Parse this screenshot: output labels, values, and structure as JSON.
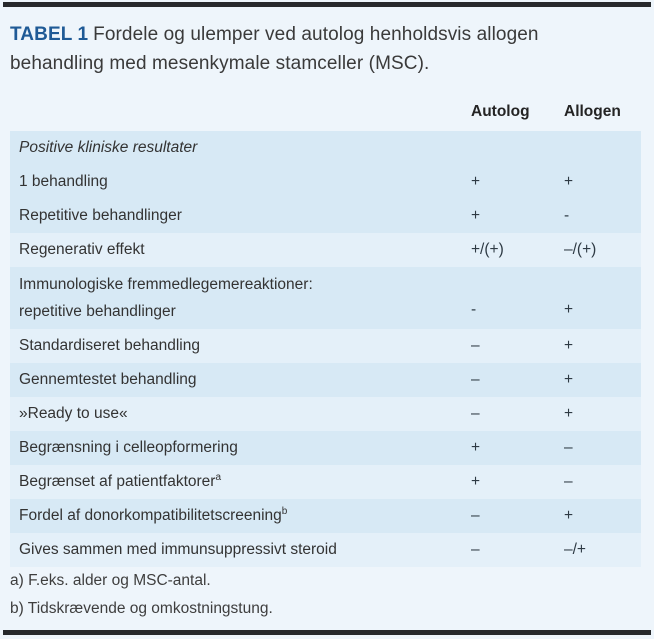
{
  "page": {
    "title_label": "TABEL 1",
    "title_rest_line1": "Fordele og ulemper ved autolog henholdsvis allogen",
    "title_rest_line2": "behandling med mesenkymale stamceller (MSC)."
  },
  "table": {
    "columns": [
      "Autolog",
      "Allogen"
    ],
    "rows": [
      {
        "label": "Positive kliniske resultater",
        "autolog": "",
        "allogen": "",
        "italic": true,
        "shade": "dark"
      },
      {
        "label": "1 behandling",
        "autolog": "+",
        "allogen": "+",
        "shade": "dark"
      },
      {
        "label": "Repetitive behandlinger",
        "autolog": "+",
        "allogen": "-",
        "shade": "dark"
      },
      {
        "label": "Regenerativ effekt",
        "autolog": "+/(+)",
        "allogen": "–/(+)",
        "shade": "light"
      },
      {
        "label": "Immunologiske fremmedlegemereaktioner:",
        "label2": "repetitive behandlinger",
        "autolog": "-",
        "allogen": "+",
        "shade": "dark"
      },
      {
        "label": "Standardiseret behandling",
        "autolog": "–",
        "allogen": "+",
        "shade": "light"
      },
      {
        "label": "Gennemtestet behandling",
        "autolog": "–",
        "allogen": "+",
        "shade": "dark"
      },
      {
        "label": "»Ready to use«",
        "autolog": "–",
        "allogen": "+",
        "shade": "light"
      },
      {
        "label": "Begrænsning i celleopformering",
        "autolog": "+",
        "allogen": "–",
        "shade": "dark"
      },
      {
        "label": "Begrænset af patientfaktorer",
        "sup": "a",
        "autolog": "+",
        "allogen": "–",
        "shade": "light"
      },
      {
        "label": "Fordel af donorkompatibilitetscreening",
        "sup": "b",
        "autolog": "–",
        "allogen": "+",
        "shade": "dark"
      },
      {
        "label": "Gives sammen med immunsuppressivt steroid",
        "autolog": "–",
        "allogen": "–/+",
        "shade": "light"
      }
    ],
    "footnotes": [
      "a) F.eks. alder og MSC-antal.",
      "b) Tidskrævende og omkostningstung."
    ]
  },
  "colors": {
    "accent_blue": "#1F5A96",
    "row_dark": "#D7E9F5",
    "row_light": "#E4F0F9",
    "page_background": "#EEF5FB",
    "rule_bar": "#27292C",
    "body_text": "#333333"
  }
}
